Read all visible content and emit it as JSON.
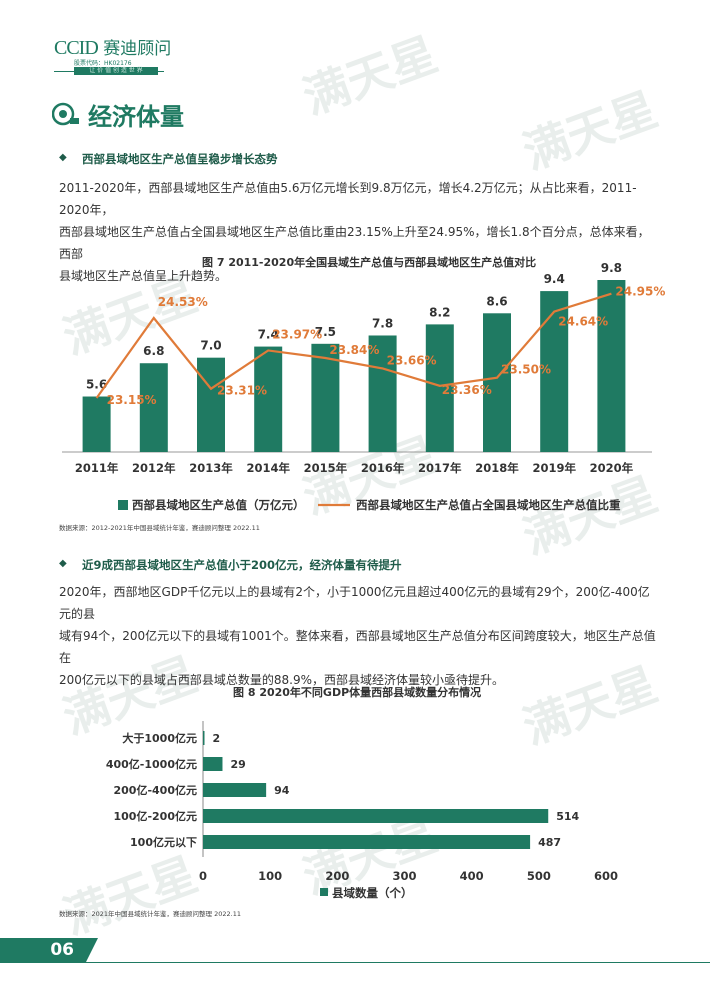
{
  "header": {
    "logo_ccid": "CCID",
    "logo_name": "赛迪顾问",
    "stock_code": "股票代码：HK02176",
    "tagline": "让 价 值 创 造 世 界"
  },
  "watermark_text": "满天星",
  "section_title": "经济体量",
  "block1": {
    "heading": "西部县域地区生产总值呈稳步增长态势",
    "paragraph": [
      "2011-2020年，西部县域地区生产总值由5.6万亿元增长到9.8万亿元，增长4.2万亿元；从占比来看，2011-2020年，",
      "西部县域地区生产总值占全国县域地区生产总值比重由23.15%上升至24.95%，增长1.8个百分点，总体来看，西部",
      "县域地区生产总值呈上升趋势。"
    ],
    "figure_caption": "图 7  2011-2020年全国县域生产总值与西部县域地区生产总值对比",
    "source": "数据来源：2012-2021年中国县域统计年鉴，赛迪顾问整理 2022.11"
  },
  "block2": {
    "heading": "近9成西部县域地区生产总值小于200亿元，经济体量有待提升",
    "paragraph": [
      "2020年，西部地区GDP千亿元以上的县域有2个，小于1000亿元且超过400亿元的县域有29个，200亿-400亿元的县",
      "域有94个，200亿元以下的县域有1001个。整体来看，西部县域地区生产总值分布区间跨度较大，地区生产总值在",
      "200亿元以下的县域占西部县域总数量的88.9%，西部县域经济体量较小亟待提升。"
    ],
    "figure_caption": "图 8  2020年不同GDP体量西部县域数量分布情况",
    "source": "数据来源：2021年中国县域统计年鉴，赛迪顾问整理 2022.11"
  },
  "page_number": "06",
  "colors": {
    "primary": "#1f7a62",
    "line": "#e07b39",
    "watermark": "#e9eeec"
  },
  "chart_data": [
    {
      "type": "bar",
      "title": "图 7  2011-2020年全国县域生产总值与西部县域地区生产总值对比",
      "categories": [
        "2011年",
        "2012年",
        "2013年",
        "2014年",
        "2015年",
        "2016年",
        "2017年",
        "2018年",
        "2019年",
        "2020年"
      ],
      "series": [
        {
          "name": "西部县域地区生产总值（万亿元）",
          "type": "bar",
          "values": [
            5.6,
            6.8,
            7.0,
            7.4,
            7.5,
            7.8,
            8.2,
            8.6,
            9.4,
            9.8
          ],
          "labels": [
            "5.6",
            "6.8",
            "7.0",
            "7.4",
            "7.5",
            "7.8",
            "8.2",
            "8.6",
            "9.4",
            "9.8"
          ],
          "color": "#1f7a62"
        },
        {
          "name": "西部县域地区生产总值占全国县域地区生产总值比重",
          "type": "line",
          "values": [
            23.15,
            24.53,
            23.31,
            23.97,
            23.84,
            23.66,
            23.36,
            23.5,
            24.64,
            24.95
          ],
          "labels": [
            "23.15%",
            "24.53%",
            "23.31%",
            "23.97%",
            "23.84%",
            "23.66%",
            "23.36%",
            "23.50%",
            "24.64%",
            "24.95%"
          ],
          "color": "#e07b39"
        }
      ],
      "legend": "bottom"
    },
    {
      "type": "bar",
      "orientation": "horizontal",
      "title": "图 8  2020年不同GDP体量西部县域数量分布情况",
      "categories": [
        "大于1000亿元",
        "400亿-1000亿元",
        "200亿-400亿元",
        "100亿-200亿元",
        "100亿元以下"
      ],
      "values": [
        2,
        29,
        94,
        514,
        487
      ],
      "labels": [
        "2",
        "29",
        "94",
        "514",
        "487"
      ],
      "series_name": "县域数量（个）",
      "xlim": [
        0,
        600
      ],
      "xticks": [
        "0",
        "100",
        "200",
        "300",
        "400",
        "500",
        "600"
      ],
      "legend": "bottom"
    }
  ]
}
